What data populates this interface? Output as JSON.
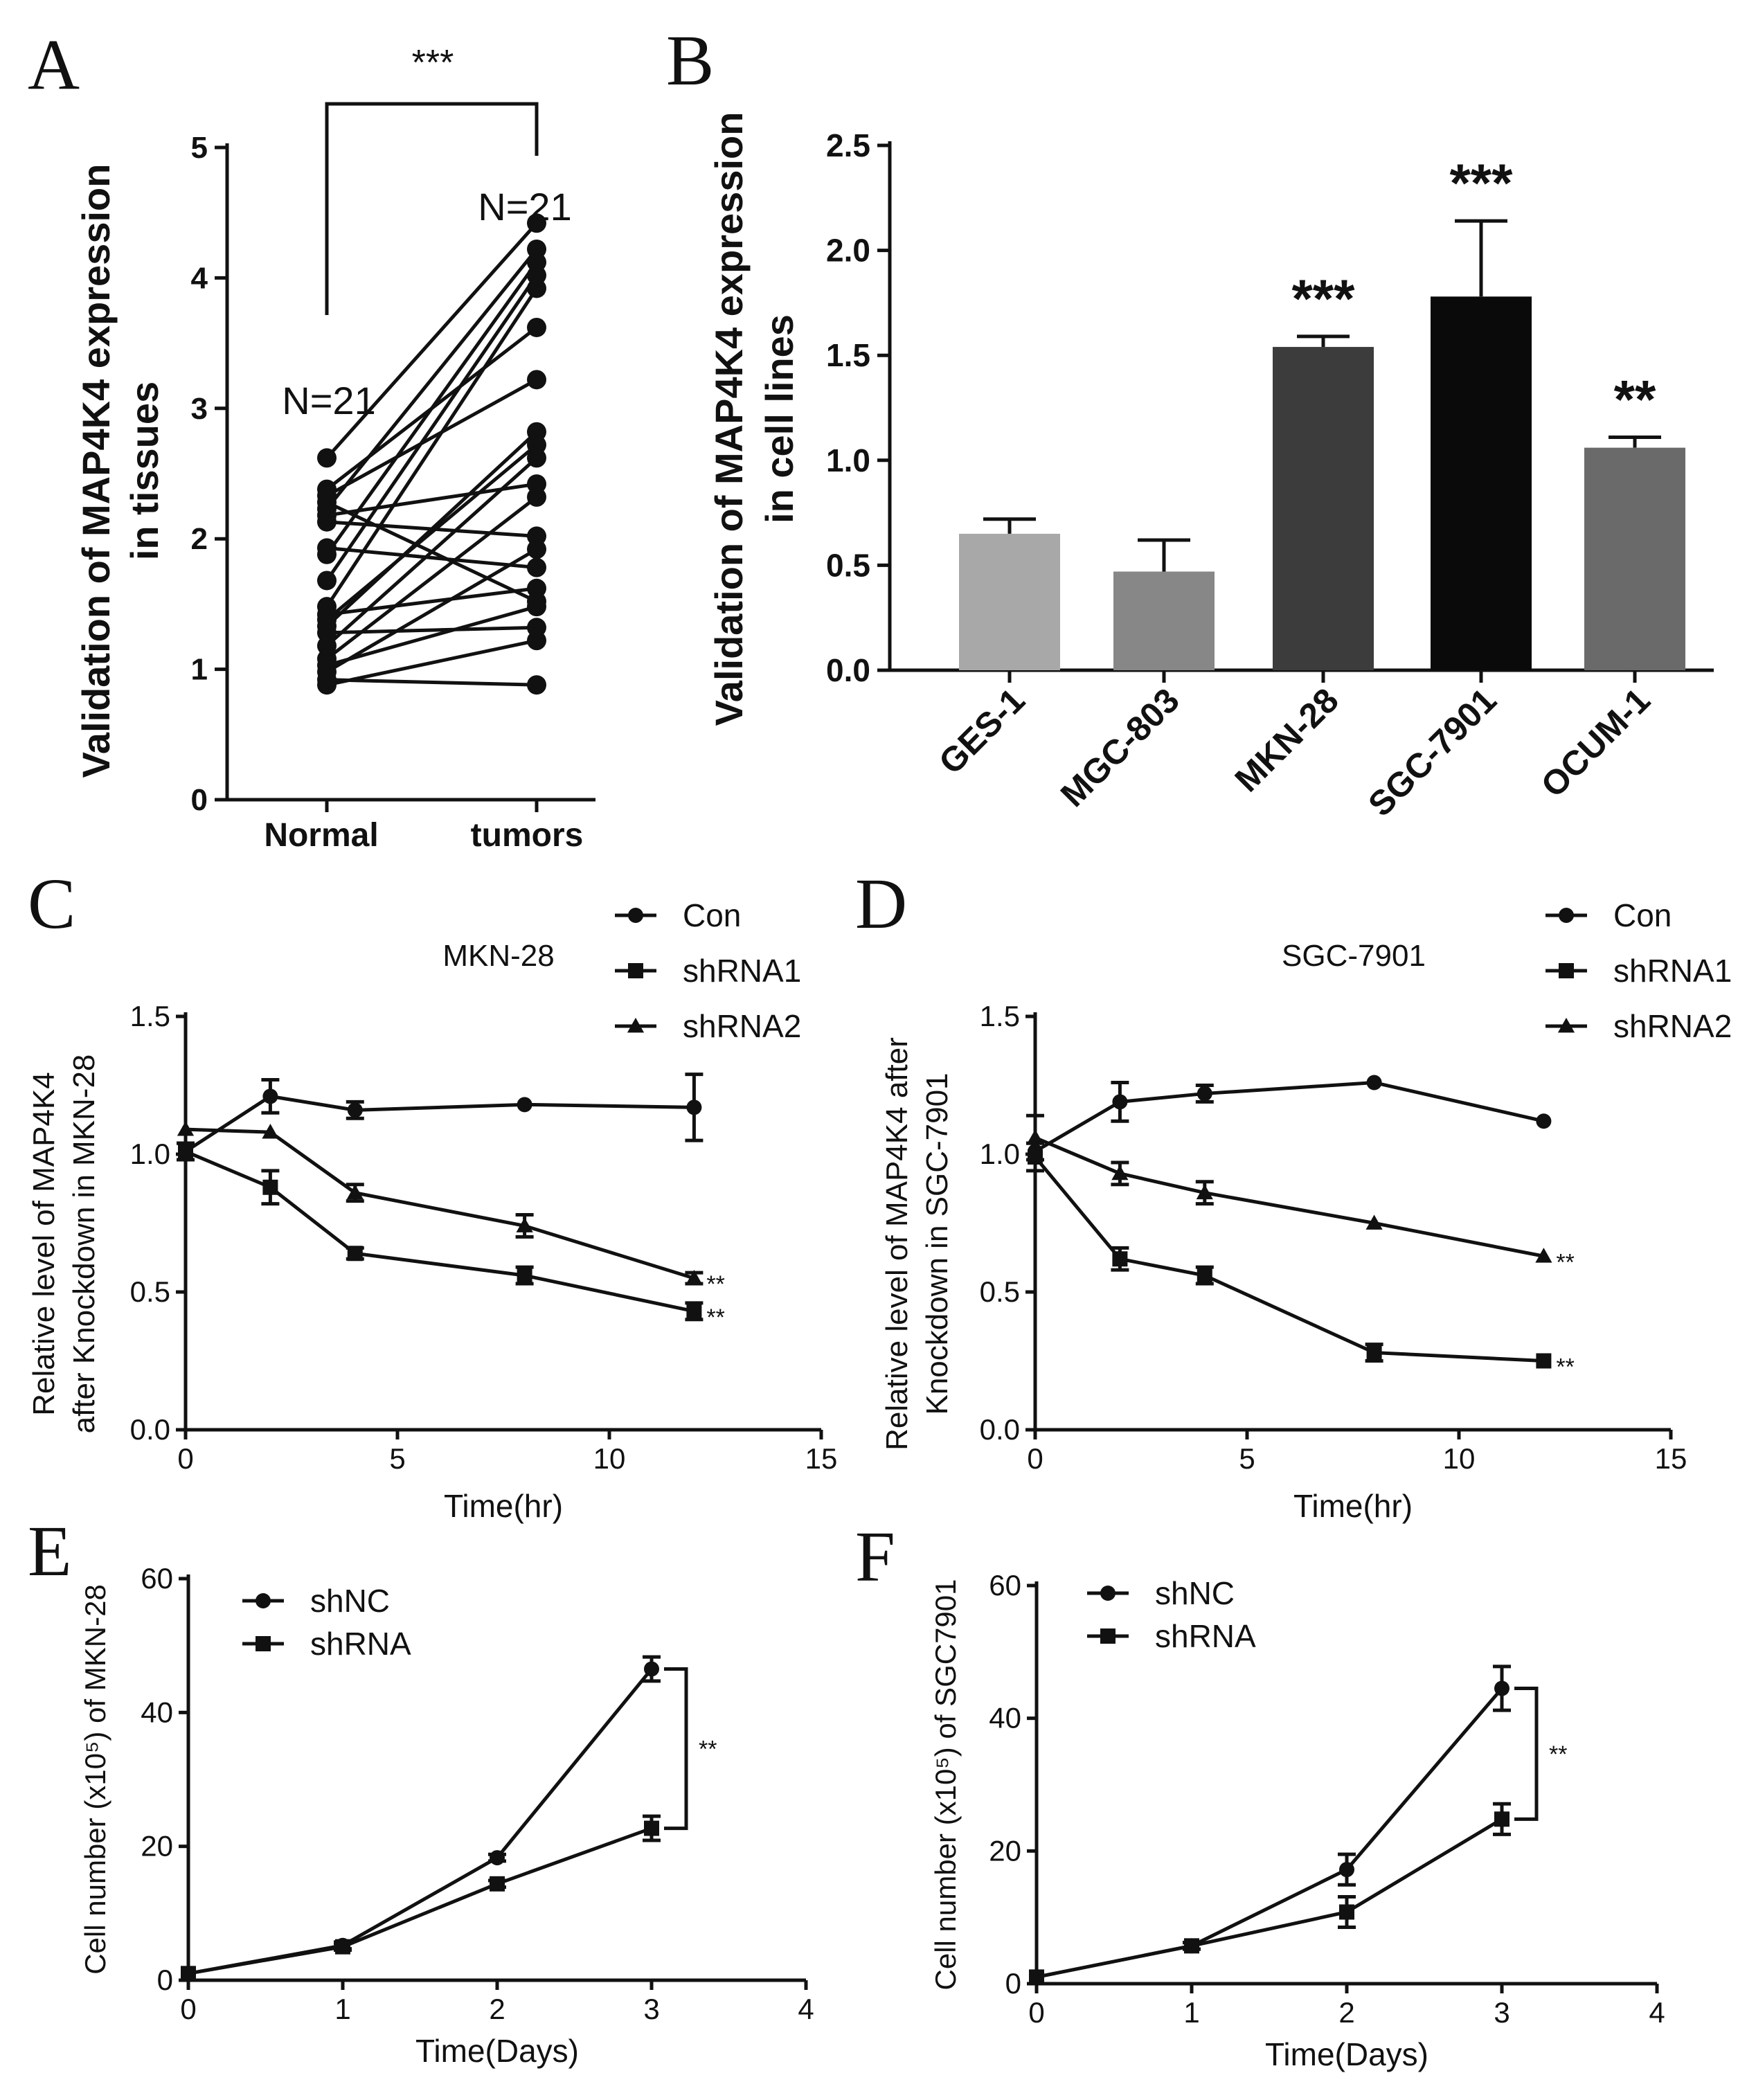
{
  "chart_data": [
    {
      "panel": "A",
      "type": "scatter",
      "subtype": "paired-lines",
      "ylabel_lines": [
        "Validation of MAP4K4 expression",
        "in tissues"
      ],
      "categories": [
        "Normal",
        "tumors"
      ],
      "ylim": [
        0,
        5
      ],
      "yticks": [
        "0",
        "1",
        "2",
        "3",
        "4",
        "5"
      ],
      "n_labels": [
        "N=21",
        "N=21"
      ],
      "significance": "***",
      "pairs": [
        [
          0.88,
          1.22
        ],
        [
          0.92,
          0.88
        ],
        [
          0.98,
          1.92
        ],
        [
          1.03,
          1.48
        ],
        [
          1.08,
          2.32
        ],
        [
          1.18,
          2.62
        ],
        [
          1.28,
          1.32
        ],
        [
          1.33,
          2.82
        ],
        [
          1.38,
          2.72
        ],
        [
          1.42,
          1.62
        ],
        [
          1.48,
          3.92
        ],
        [
          1.68,
          4.02
        ],
        [
          1.88,
          4.12
        ],
        [
          1.93,
          1.78
        ],
        [
          2.13,
          2.02
        ],
        [
          2.18,
          2.42
        ],
        [
          2.23,
          4.22
        ],
        [
          2.28,
          1.52
        ],
        [
          2.33,
          3.22
        ],
        [
          2.38,
          3.62
        ],
        [
          2.62,
          4.42
        ]
      ]
    },
    {
      "panel": "B",
      "type": "bar",
      "ylabel_lines": [
        "Validation of MAP4K4 expression",
        "in cell lines"
      ],
      "categories": [
        "GES-1",
        "MGC-803",
        "MKN-28",
        "SGC-7901",
        "OCUM-1"
      ],
      "values": [
        0.65,
        0.47,
        1.54,
        1.78,
        1.06
      ],
      "errors": [
        0.07,
        0.15,
        0.05,
        0.36,
        0.05
      ],
      "colors": [
        "#a8a8a8",
        "#878787",
        "#3c3c3c",
        "#0a0a0a",
        "#6a6a6a"
      ],
      "significance": [
        "",
        "",
        "***",
        "***",
        "**"
      ],
      "ylim": [
        0,
        2.5
      ],
      "yticks": [
        "0.0",
        "0.5",
        "1.0",
        "1.5",
        "2.0",
        "2.5"
      ]
    },
    {
      "panel": "C",
      "type": "line",
      "subtitle": "MKN-28",
      "ylabel_lines": [
        "Relative level of MAP4K4",
        "after Knockdown in MKN-28"
      ],
      "xlabel": "Time(hr)",
      "xlim": [
        0,
        15
      ],
      "ylim": [
        0,
        1.5
      ],
      "xticks": [
        "0",
        "5",
        "10",
        "15"
      ],
      "yticks": [
        "0.0",
        "0.5",
        "1.0",
        "1.5"
      ],
      "series": [
        {
          "name": "Con",
          "marker": "circle",
          "x": [
            0,
            2,
            4,
            8,
            12
          ],
          "values": [
            1.01,
            1.21,
            1.16,
            1.18,
            1.17
          ],
          "errors": [
            0.03,
            0.06,
            0.03,
            0.0,
            0.12
          ],
          "annotation": ""
        },
        {
          "name": "shRNA1",
          "marker": "square",
          "x": [
            0,
            2,
            4,
            8,
            12
          ],
          "values": [
            1.01,
            0.88,
            0.64,
            0.56,
            0.43
          ],
          "errors": [
            0.03,
            0.06,
            0.02,
            0.03,
            0.03
          ],
          "annotation": "**"
        },
        {
          "name": "shRNA2",
          "marker": "triangle",
          "x": [
            0,
            2,
            4,
            8,
            12
          ],
          "values": [
            1.09,
            1.08,
            0.86,
            0.74,
            0.55
          ],
          "errors": [
            0.0,
            0.0,
            0.03,
            0.04,
            0.02
          ],
          "annotation": "**"
        }
      ]
    },
    {
      "panel": "D",
      "type": "line",
      "subtitle": "SGC-7901",
      "ylabel_lines": [
        "Relative level of MAP4K4 after",
        "Knockdown in SGC-7901"
      ],
      "xlabel": "Time(hr)",
      "xlim": [
        0,
        15
      ],
      "ylim": [
        0,
        1.5
      ],
      "xticks": [
        "0",
        "5",
        "10",
        "15"
      ],
      "yticks": [
        "0.0",
        "0.5",
        "1.0",
        "1.5"
      ],
      "series": [
        {
          "name": "Con",
          "marker": "circle",
          "x": [
            0,
            2,
            4,
            8,
            12
          ],
          "values": [
            1.01,
            1.19,
            1.22,
            1.26,
            1.12
          ],
          "errors": [
            0.03,
            0.07,
            0.03,
            0.0,
            0.0
          ],
          "annotation": ""
        },
        {
          "name": "shRNA1",
          "marker": "square",
          "x": [
            0,
            2,
            4,
            8,
            12
          ],
          "values": [
            0.99,
            0.62,
            0.56,
            0.28,
            0.25
          ],
          "errors": [
            0.05,
            0.04,
            0.03,
            0.03,
            0.0
          ],
          "annotation": "**"
        },
        {
          "name": "shRNA2",
          "marker": "triangle",
          "x": [
            0,
            2,
            4,
            8,
            12
          ],
          "values": [
            1.06,
            0.93,
            0.86,
            0.75,
            0.63
          ],
          "errors": [
            0.08,
            0.04,
            0.04,
            0.0,
            0.0
          ],
          "annotation": "**"
        }
      ]
    },
    {
      "panel": "E",
      "type": "line",
      "ylabel": "Cell number (x10⁵) of MKN-28",
      "xlabel": "Time(Days)",
      "xlim": [
        0,
        4
      ],
      "ylim": [
        0,
        60
      ],
      "xticks": [
        "0",
        "1",
        "2",
        "3",
        "4"
      ],
      "yticks": [
        "0",
        "20",
        "40",
        "60"
      ],
      "significance": "**",
      "series": [
        {
          "name": "shNC",
          "marker": "circle",
          "x": [
            0,
            1,
            2,
            3
          ],
          "values": [
            1.0,
            5.2,
            18.3,
            46.5
          ],
          "errors": [
            0.0,
            0.5,
            0.5,
            1.8
          ]
        },
        {
          "name": "shRNA",
          "marker": "square",
          "x": [
            0,
            1,
            2,
            3
          ],
          "values": [
            1.0,
            5.0,
            14.4,
            22.7
          ],
          "errors": [
            0.0,
            0.5,
            0.5,
            1.8
          ]
        }
      ]
    },
    {
      "panel": "F",
      "type": "line",
      "ylabel": "Cell number (x10⁵) of SGC7901",
      "xlabel": "Time(Days)",
      "xlim": [
        0,
        4
      ],
      "ylim": [
        0,
        60
      ],
      "xticks": [
        "0",
        "1",
        "2",
        "3",
        "4"
      ],
      "yticks": [
        "0",
        "20",
        "40",
        "60"
      ],
      "significance": "**",
      "series": [
        {
          "name": "shNC",
          "marker": "circle",
          "x": [
            0,
            1,
            2,
            3
          ],
          "values": [
            1.0,
            5.7,
            17.2,
            44.5
          ],
          "errors": [
            0.0,
            0.5,
            2.3,
            3.3
          ]
        },
        {
          "name": "shRNA",
          "marker": "square",
          "x": [
            0,
            1,
            2,
            3
          ],
          "values": [
            1.0,
            5.7,
            10.8,
            24.8
          ],
          "errors": [
            0.0,
            0.5,
            2.3,
            2.3
          ]
        }
      ]
    }
  ]
}
